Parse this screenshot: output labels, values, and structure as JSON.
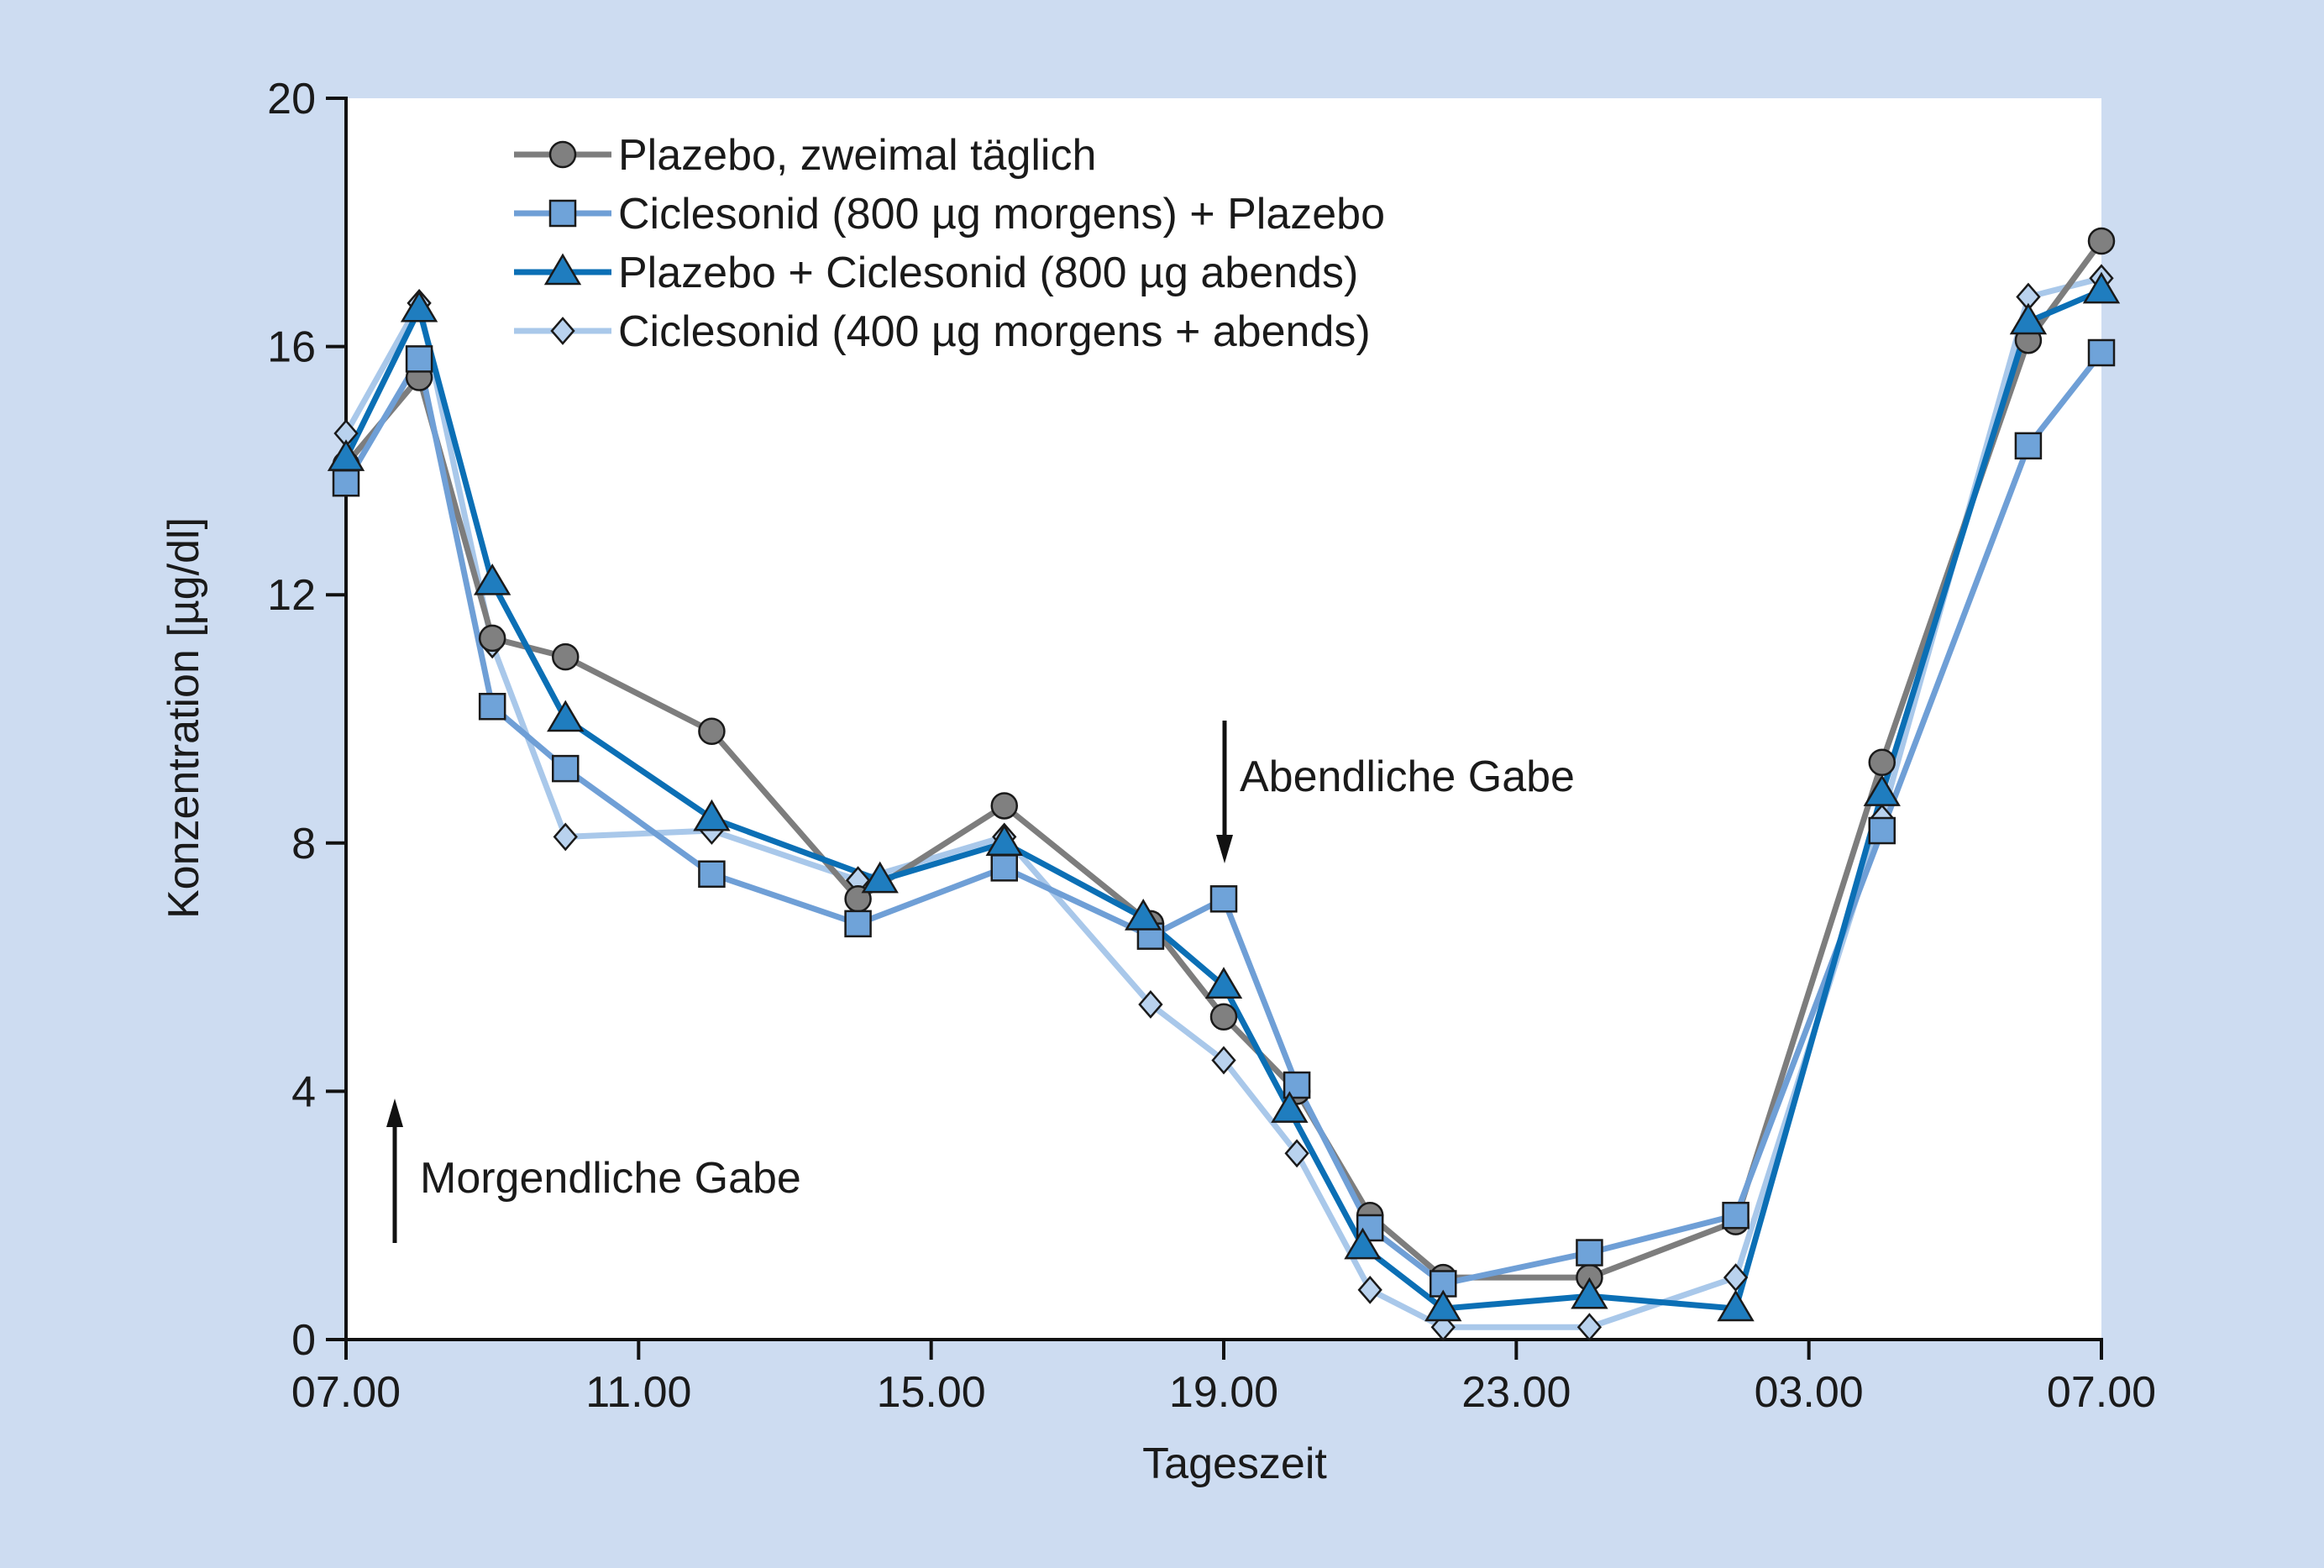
{
  "chart_data": {
    "type": "line",
    "xlabel": "Tageszeit",
    "ylabel": "Konzentration [µg/dl]",
    "x_ticks": [
      "07.00",
      "11.00",
      "15.00",
      "19.00",
      "23.00",
      "03.00",
      "07.00"
    ],
    "x_unit": "hours since 07.00",
    "xlim": [
      0,
      24
    ],
    "y_ticks": [
      0,
      4,
      8,
      12,
      16,
      20
    ],
    "ylim": [
      0,
      20
    ],
    "legend_position": "top-left",
    "grid": false,
    "annotations": {
      "morning": "Morgendliche Gabe",
      "evening": "Abendliche Gabe"
    },
    "series": [
      {
        "name": "Plazebo, zweimal täglich",
        "color": "#808080",
        "line_color": "#7d7d7d",
        "marker": "circle",
        "points": [
          [
            0,
            14.1
          ],
          [
            1,
            15.5
          ],
          [
            2,
            11.3
          ],
          [
            3,
            11.0
          ],
          [
            5,
            9.8
          ],
          [
            7,
            7.1
          ],
          [
            9,
            8.6
          ],
          [
            11,
            6.7
          ],
          [
            12,
            5.2
          ],
          [
            13,
            4.0
          ],
          [
            14,
            2.0
          ],
          [
            15,
            1.0
          ],
          [
            17,
            1.0
          ],
          [
            19,
            1.9
          ],
          [
            21,
            9.3
          ],
          [
            23,
            16.1
          ],
          [
            24,
            17.7
          ]
        ]
      },
      {
        "name": "Ciclesonid (800 µg morgens) + Plazebo",
        "color": "#6fa3d9",
        "line_color": "#6f9fd6",
        "marker": "square",
        "points": [
          [
            0,
            13.8
          ],
          [
            1,
            15.8
          ],
          [
            2,
            10.2
          ],
          [
            3,
            9.2
          ],
          [
            5,
            7.5
          ],
          [
            7,
            6.7
          ],
          [
            9,
            7.6
          ],
          [
            11,
            6.5
          ],
          [
            12,
            7.1
          ],
          [
            13,
            4.1
          ],
          [
            14,
            1.8
          ],
          [
            15,
            0.9
          ],
          [
            17,
            1.4
          ],
          [
            19,
            2.0
          ],
          [
            21,
            8.2
          ],
          [
            23,
            14.4
          ],
          [
            24,
            15.9
          ]
        ]
      },
      {
        "name": "Plazebo + Ciclesonid (800 µg abends)",
        "color": "#1f7dbf",
        "line_color": "#0b6fb5",
        "marker": "triangle",
        "points": [
          [
            0,
            14.2
          ],
          [
            1,
            16.6
          ],
          [
            2,
            12.2
          ],
          [
            3,
            10.0
          ],
          [
            5,
            8.4
          ],
          [
            7.3,
            7.4
          ],
          [
            9,
            8.0
          ],
          [
            10.9,
            6.8
          ],
          [
            12,
            5.7
          ],
          [
            12.9,
            3.7
          ],
          [
            13.9,
            1.5
          ],
          [
            15,
            0.5
          ],
          [
            17,
            0.7
          ],
          [
            19,
            0.5
          ],
          [
            21,
            8.8
          ],
          [
            23,
            16.4
          ],
          [
            24,
            16.9
          ]
        ]
      },
      {
        "name": "Ciclesonid (400 µg morgens + abends)",
        "color": "#b9d2ee",
        "line_color": "#a9c8ea",
        "marker": "diamond",
        "points": [
          [
            0,
            14.6
          ],
          [
            1,
            16.7
          ],
          [
            2,
            11.2
          ],
          [
            3,
            8.1
          ],
          [
            5,
            8.2
          ],
          [
            7,
            7.4
          ],
          [
            9,
            8.1
          ],
          [
            11,
            5.4
          ],
          [
            12,
            4.5
          ],
          [
            13,
            3.0
          ],
          [
            14,
            0.8
          ],
          [
            15,
            0.2
          ],
          [
            17,
            0.2
          ],
          [
            19,
            1.0
          ],
          [
            21,
            8.4
          ],
          [
            23,
            16.8
          ],
          [
            24,
            17.1
          ]
        ]
      }
    ]
  }
}
